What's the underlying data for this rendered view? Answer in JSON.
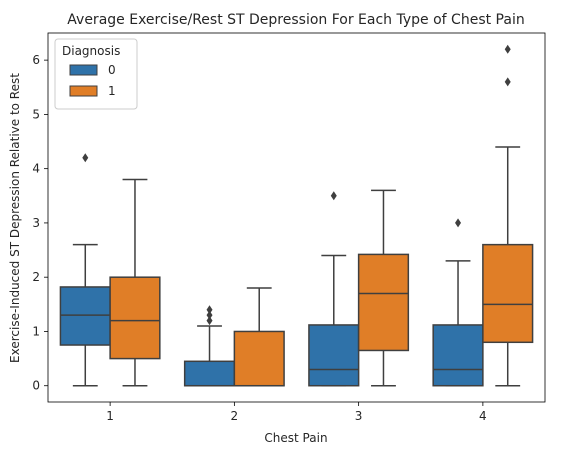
{
  "chart_data": {
    "type": "box",
    "title": "Average Exercise/Rest ST Depression For Each Type of Chest Pain",
    "xlabel": "Chest Pain",
    "ylabel": "Exercise-Induced ST Depression Relative to Rest",
    "categories": [
      "1",
      "2",
      "3",
      "4"
    ],
    "ylim": [
      -0.3,
      6.5
    ],
    "yticks": [
      0,
      1,
      2,
      3,
      4,
      5,
      6
    ],
    "grid": false,
    "legend": {
      "title": "Diagnosis",
      "position": "top-left"
    },
    "series": [
      {
        "name": "0",
        "color": "#2f72a9",
        "boxes": [
          {
            "whisker_low": 0.0,
            "q1": 0.75,
            "median": 1.3,
            "q3": 1.82,
            "whisker_high": 2.6,
            "outliers": [
              4.2
            ]
          },
          {
            "whisker_low": 0.0,
            "q1": 0.0,
            "median": 0.0,
            "q3": 0.45,
            "whisker_high": 1.1,
            "outliers": [
              1.2,
              1.3,
              1.4
            ]
          },
          {
            "whisker_low": 0.0,
            "q1": 0.0,
            "median": 0.3,
            "q3": 1.12,
            "whisker_high": 2.4,
            "outliers": [
              3.5
            ]
          },
          {
            "whisker_low": 0.0,
            "q1": 0.0,
            "median": 0.3,
            "q3": 1.12,
            "whisker_high": 2.3,
            "outliers": [
              3.0
            ]
          }
        ]
      },
      {
        "name": "1",
        "color": "#e07e27",
        "boxes": [
          {
            "whisker_low": 0.0,
            "q1": 0.5,
            "median": 1.2,
            "q3": 2.0,
            "whisker_high": 3.8,
            "outliers": []
          },
          {
            "whisker_low": 0.0,
            "q1": 0.0,
            "median": 0.0,
            "q3": 1.0,
            "whisker_high": 1.8,
            "outliers": []
          },
          {
            "whisker_low": 0.0,
            "q1": 0.65,
            "median": 1.7,
            "q3": 2.42,
            "whisker_high": 3.6,
            "outliers": []
          },
          {
            "whisker_low": 0.0,
            "q1": 0.8,
            "median": 1.5,
            "q3": 2.6,
            "whisker_high": 4.4,
            "outliers": [
              5.6,
              6.2
            ]
          }
        ]
      }
    ]
  }
}
